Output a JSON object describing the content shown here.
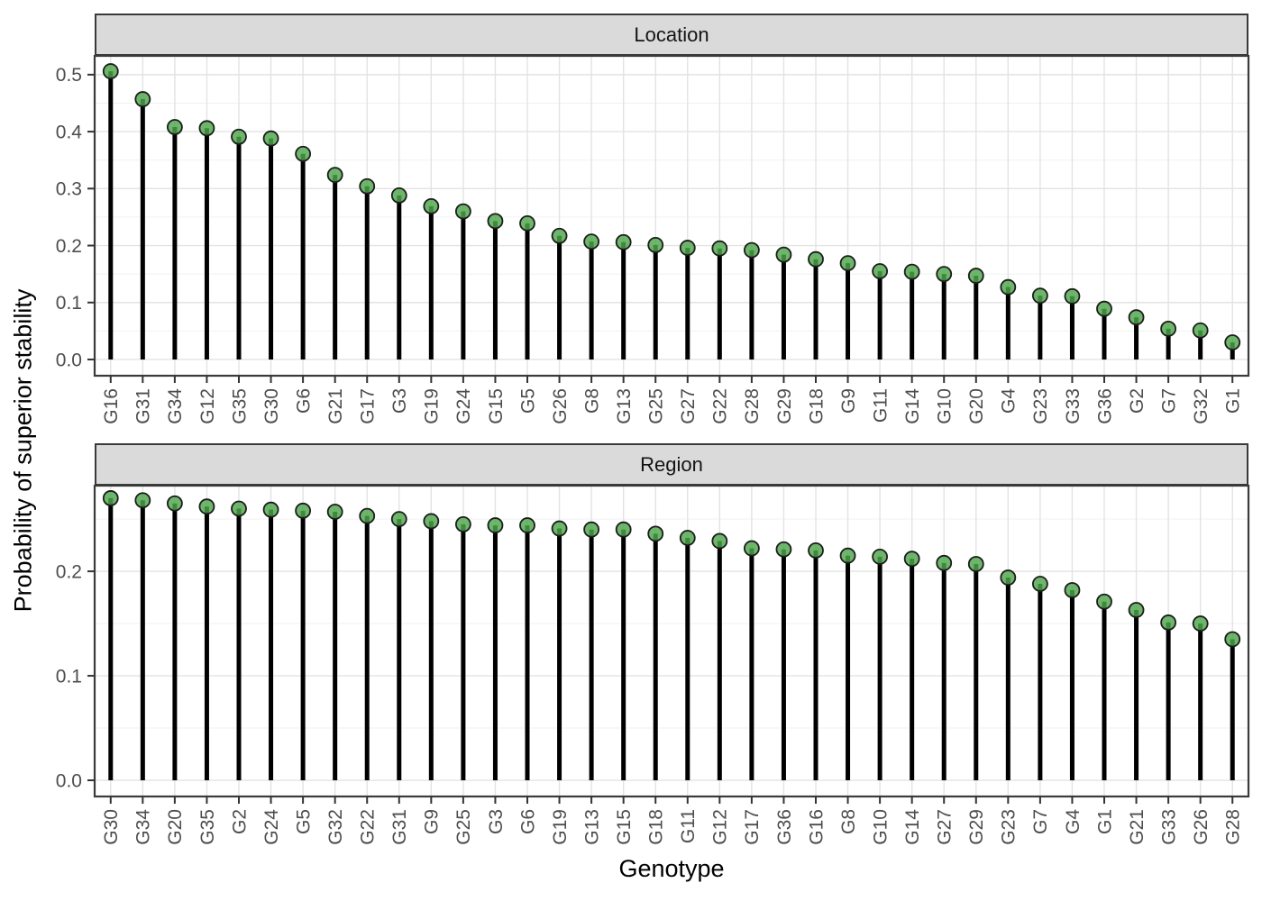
{
  "chart_data": {
    "type": "lollipop",
    "title": "",
    "xlabel": "Genotype",
    "ylabel": "Probability of superior stability",
    "grid": true,
    "legend": "none",
    "facets": [
      {
        "label": "Location",
        "y_ticks": [
          0.0,
          0.1,
          0.2,
          0.3,
          0.4,
          0.5
        ],
        "y_minor_ticks": [
          0.05,
          0.15,
          0.25,
          0.35,
          0.45
        ],
        "ylim": [
          -0.0285,
          0.533
        ],
        "categories": [
          "G16",
          "G31",
          "G34",
          "G12",
          "G35",
          "G30",
          "G6",
          "G21",
          "G17",
          "G3",
          "G19",
          "G24",
          "G15",
          "G5",
          "G26",
          "G8",
          "G13",
          "G25",
          "G27",
          "G22",
          "G28",
          "G29",
          "G18",
          "G9",
          "G11",
          "G14",
          "G10",
          "G20",
          "G4",
          "G23",
          "G33",
          "G36",
          "G2",
          "G7",
          "G32",
          "G1"
        ],
        "values": [
          0.506,
          0.457,
          0.408,
          0.406,
          0.391,
          0.388,
          0.361,
          0.324,
          0.304,
          0.288,
          0.269,
          0.26,
          0.243,
          0.239,
          0.217,
          0.207,
          0.206,
          0.201,
          0.196,
          0.195,
          0.192,
          0.184,
          0.176,
          0.169,
          0.155,
          0.154,
          0.15,
          0.147,
          0.127,
          0.112,
          0.111,
          0.089,
          0.074,
          0.054,
          0.051,
          0.03
        ]
      },
      {
        "label": "Region",
        "y_ticks": [
          0.0,
          0.1,
          0.2
        ],
        "y_minor_ticks": [
          0.05,
          0.15,
          0.25
        ],
        "ylim": [
          -0.0155,
          0.282
        ],
        "categories": [
          "G30",
          "G34",
          "G20",
          "G35",
          "G2",
          "G24",
          "G5",
          "G32",
          "G22",
          "G31",
          "G9",
          "G25",
          "G3",
          "G6",
          "G19",
          "G13",
          "G15",
          "G18",
          "G11",
          "G12",
          "G17",
          "G36",
          "G16",
          "G8",
          "G10",
          "G14",
          "G27",
          "G29",
          "G23",
          "G7",
          "G4",
          "G1",
          "G21",
          "G33",
          "G26",
          "G28"
        ],
        "values": [
          0.27,
          0.268,
          0.265,
          0.262,
          0.26,
          0.259,
          0.258,
          0.257,
          0.253,
          0.25,
          0.248,
          0.245,
          0.244,
          0.244,
          0.241,
          0.24,
          0.24,
          0.236,
          0.232,
          0.229,
          0.222,
          0.221,
          0.22,
          0.215,
          0.214,
          0.212,
          0.208,
          0.207,
          0.194,
          0.188,
          0.182,
          0.171,
          0.163,
          0.151,
          0.15,
          0.135
        ]
      }
    ],
    "colors": {
      "marker_fill": "#4da64a",
      "marker_stroke": "#1c1c1c",
      "stem": "#000000",
      "strip_bg": "#dadada",
      "panel_border": "#3a3a3a",
      "grid_major": "#e3e3e3",
      "grid_minor": "#f1f1f1",
      "tick_label": "#4d4d4d",
      "axis_title": "#000000"
    }
  }
}
